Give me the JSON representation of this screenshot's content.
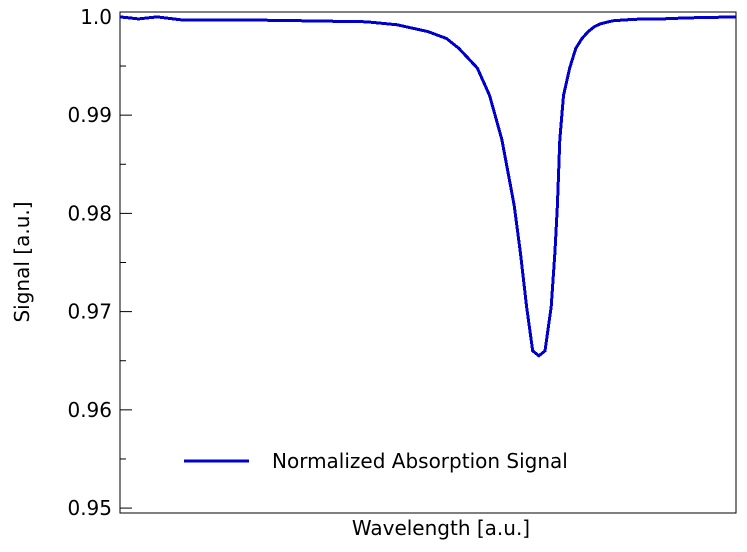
{
  "chart_data": {
    "type": "line",
    "xlabel": "Wavelength [a.u.]",
    "ylabel": "Signal [a.u.]",
    "xlim": [
      0,
      100
    ],
    "ylim": [
      0.9495,
      1.0005
    ],
    "yticks": [
      {
        "value": 1.0,
        "label": "1.0"
      },
      {
        "value": 0.99,
        "label": "0.99"
      },
      {
        "value": 0.98,
        "label": "0.98"
      },
      {
        "value": 0.97,
        "label": "0.97"
      },
      {
        "value": 0.96,
        "label": "0.96"
      },
      {
        "value": 0.95,
        "label": "0.95"
      }
    ],
    "yminor_ticks": [
      0.995,
      0.985,
      0.975,
      0.965,
      0.955
    ],
    "grid": false,
    "legend_position": "bottom-left",
    "series": [
      {
        "name": "Normalized Absorption Signal",
        "color": "#0000cc",
        "x": [
          0,
          3,
          6,
          10,
          20,
          30,
          40,
          45,
          50,
          53,
          55,
          58,
          60,
          62,
          64,
          65,
          66,
          67,
          68,
          69,
          70,
          70.6,
          71,
          71.4,
          72,
          73,
          74,
          75,
          76,
          77,
          78,
          80,
          82,
          85,
          88,
          92,
          100
        ],
        "y": [
          1.0,
          0.9998,
          1.0,
          0.9997,
          0.9997,
          0.9996,
          0.9995,
          0.9992,
          0.9985,
          0.9978,
          0.9968,
          0.9948,
          0.992,
          0.9875,
          0.9808,
          0.976,
          0.9705,
          0.966,
          0.9655,
          0.966,
          0.9705,
          0.976,
          0.9808,
          0.9875,
          0.992,
          0.9948,
          0.9968,
          0.9978,
          0.9985,
          0.999,
          0.9993,
          0.9996,
          0.9997,
          0.9998,
          0.9998,
          0.9999,
          1.0
        ]
      }
    ]
  }
}
